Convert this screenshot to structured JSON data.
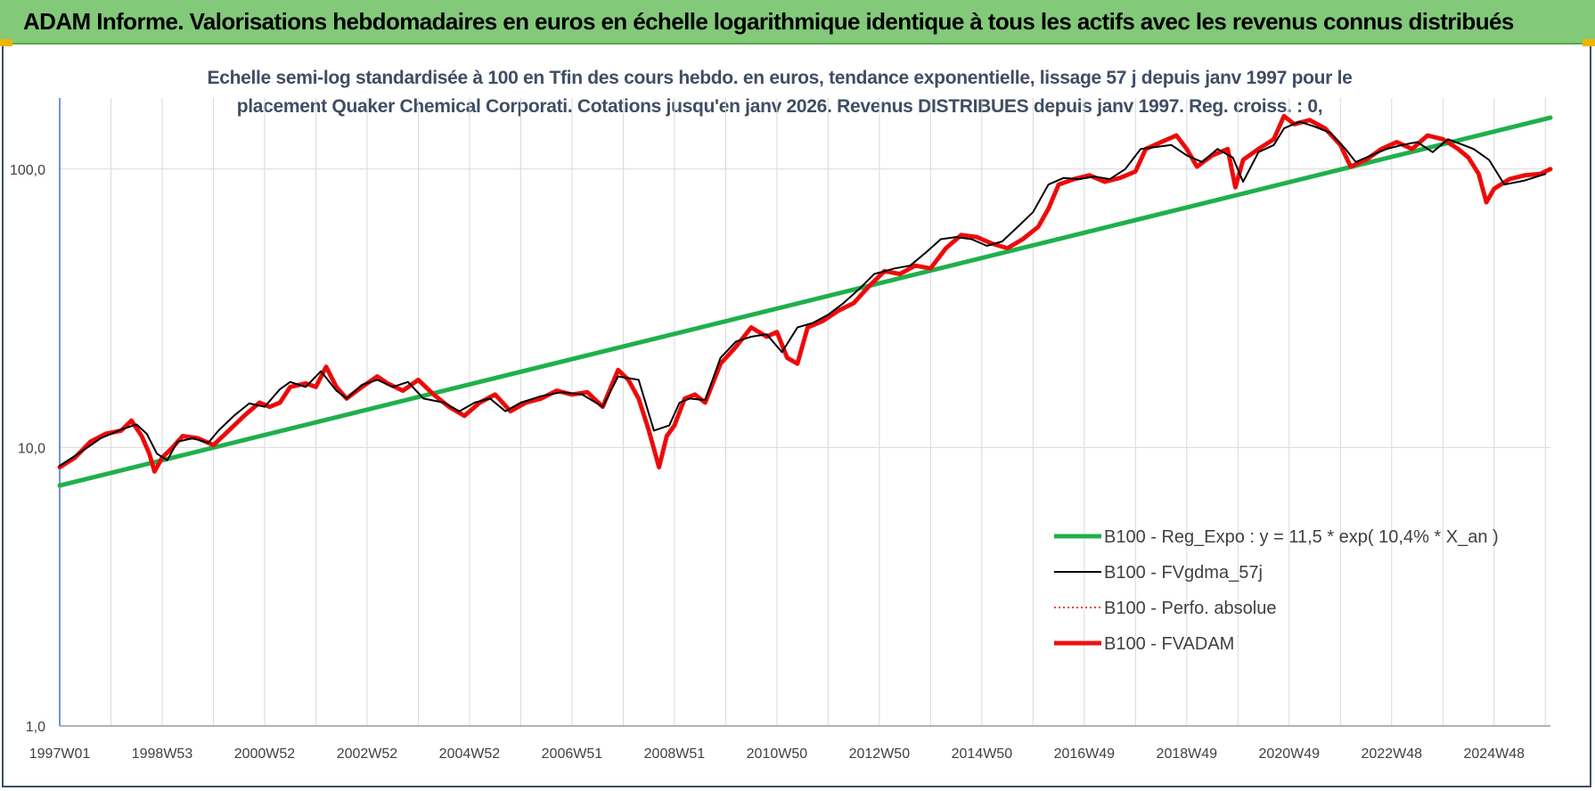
{
  "header": {
    "title": "ADAM Informe. Valorisations hebdomadaires en euros en échelle logarithmique identique à tous les actifs avec les revenus connus distribués"
  },
  "chart_data": {
    "type": "line",
    "title": "",
    "subtitle_lines": [
      "Echelle semi-log standardisée à 100 en Tfin des cours hebdo. en euros, tendance exponentielle, lissage 57 j depuis janv 1997 pour le",
      "placement Quaker Chemical Corporati. Cotations jusqu'en janv 2026. Revenus DISTRIBUES depuis janv 1997. Reg. croiss. : 0,"
    ],
    "y_scale": "log",
    "ylim": [
      1,
      180
    ],
    "y_ticks": [
      {
        "value": 1,
        "label": "1,0"
      },
      {
        "value": 10,
        "label": "10,0"
      },
      {
        "value": 100,
        "label": "100,0"
      }
    ],
    "x_range": [
      1997.0,
      2026.1
    ],
    "x_ticks": [
      {
        "pos": 1997.0,
        "label": "1997W01"
      },
      {
        "pos": 1999.0,
        "label": "1998W53"
      },
      {
        "pos": 2001.0,
        "label": "2000W52"
      },
      {
        "pos": 2003.0,
        "label": "2002W52"
      },
      {
        "pos": 2005.0,
        "label": "2004W52"
      },
      {
        "pos": 2007.0,
        "label": "2006W51"
      },
      {
        "pos": 2009.0,
        "label": "2008W51"
      },
      {
        "pos": 2011.0,
        "label": "2010W50"
      },
      {
        "pos": 2013.0,
        "label": "2012W50"
      },
      {
        "pos": 2015.0,
        "label": "2014W50"
      },
      {
        "pos": 2017.0,
        "label": "2016W49"
      },
      {
        "pos": 2019.0,
        "label": "2018W49"
      },
      {
        "pos": 2021.0,
        "label": "2020W49"
      },
      {
        "pos": 2023.0,
        "label": "2022W48"
      },
      {
        "pos": 2025.0,
        "label": "2024W48"
      }
    ],
    "grid": true,
    "legend_position": "bottom-right",
    "series": [
      {
        "name": "B100 - Reg_Expo : y = 11,5 * exp( 10,4% *  X_an )",
        "color": "#1fb04c",
        "style": "thick",
        "x": [
          1997.0,
          2026.1
        ],
        "y": [
          7.3,
          153
        ]
      },
      {
        "name": "B100 - FVgdma_57j",
        "color": "#000000",
        "style": "thin",
        "x": [
          1997.0,
          1997.4,
          1997.8,
          1998.2,
          1998.5,
          1998.7,
          1998.9,
          1999.1,
          1999.3,
          1999.6,
          1999.9,
          2000.1,
          2000.4,
          2000.7,
          2001.0,
          2001.3,
          2001.5,
          2001.8,
          2002.1,
          2002.4,
          2002.6,
          2002.9,
          2003.2,
          2003.5,
          2003.8,
          2004.1,
          2004.5,
          2004.8,
          2005.1,
          2005.4,
          2005.7,
          2006.0,
          2006.4,
          2006.8,
          2007.2,
          2007.6,
          2007.9,
          2008.3,
          2008.6,
          2008.9,
          2009.1,
          2009.3,
          2009.6,
          2009.9,
          2010.2,
          2010.5,
          2010.8,
          2011.1,
          2011.4,
          2011.7,
          2012.0,
          2012.3,
          2012.6,
          2012.9,
          2013.3,
          2013.6,
          2013.9,
          2014.2,
          2014.5,
          2014.8,
          2015.1,
          2015.4,
          2015.7,
          2016.0,
          2016.3,
          2016.6,
          2016.9,
          2017.2,
          2017.5,
          2017.8,
          2018.1,
          2018.4,
          2018.7,
          2019.0,
          2019.3,
          2019.6,
          2019.9,
          2020.1,
          2020.4,
          2020.7,
          2020.9,
          2021.2,
          2021.5,
          2021.8,
          2022.1,
          2022.3,
          2022.6,
          2022.9,
          2023.2,
          2023.5,
          2023.8,
          2024.1,
          2024.4,
          2024.6,
          2024.9,
          2025.2,
          2025.6,
          2026.0
        ],
        "y": [
          8.6,
          9.6,
          10.8,
          11.6,
          12.1,
          11.2,
          9.5,
          9.0,
          10.5,
          10.8,
          10.4,
          11.5,
          13.0,
          14.4,
          14.0,
          16.2,
          17.2,
          16.5,
          18.8,
          16.0,
          15.0,
          16.8,
          17.5,
          16.5,
          17.2,
          15.0,
          14.5,
          13.5,
          14.5,
          15.0,
          13.5,
          14.5,
          15.3,
          15.8,
          15.5,
          14.0,
          18.0,
          17.5,
          11.5,
          12.0,
          14.5,
          15.0,
          14.8,
          21.0,
          24.0,
          25.0,
          25.5,
          22.0,
          27.0,
          28.0,
          30.0,
          33.0,
          37.0,
          42.0,
          44.0,
          45.0,
          50.0,
          56.0,
          57.0,
          56.0,
          53.0,
          55.0,
          62.0,
          70.0,
          88.0,
          93.0,
          92.0,
          94.0,
          92.0,
          100.0,
          118.0,
          120.0,
          122.0,
          112.0,
          106.0,
          118.0,
          110.0,
          90.0,
          115.0,
          122.0,
          140.0,
          148.0,
          142.0,
          135.0,
          118.0,
          106.0,
          112.0,
          118.0,
          122.0,
          125.0,
          115.0,
          128.0,
          122.0,
          118.0,
          108.0,
          88.0,
          91.0,
          96.0
        ]
      },
      {
        "name": "B100 - Perfo. absolue",
        "color": "#e60000",
        "style": "dotted",
        "x": [
          1997.0,
          1997.3,
          1997.6,
          1997.9,
          1998.2,
          1998.4,
          1998.6,
          1998.75,
          1998.85,
          1999.0,
          1999.2,
          1999.4,
          1999.7,
          2000.0,
          2000.3,
          2000.6,
          2000.9,
          2001.1,
          2001.3,
          2001.5,
          2001.8,
          2002.0,
          2002.2,
          2002.4,
          2002.6,
          2002.9,
          2003.2,
          2003.4,
          2003.7,
          2004.0,
          2004.3,
          2004.6,
          2004.9,
          2005.2,
          2005.5,
          2005.8,
          2006.1,
          2006.4,
          2006.7,
          2007.0,
          2007.3,
          2007.6,
          2007.9,
          2008.1,
          2008.3,
          2008.5,
          2008.7,
          2008.85,
          2009.0,
          2009.2,
          2009.4,
          2009.6,
          2009.9,
          2010.2,
          2010.5,
          2010.8,
          2011.0,
          2011.2,
          2011.4,
          2011.6,
          2011.9,
          2012.2,
          2012.5,
          2012.8,
          2013.1,
          2013.4,
          2013.7,
          2014.0,
          2014.3,
          2014.6,
          2014.9,
          2015.2,
          2015.5,
          2015.8,
          2016.1,
          2016.3,
          2016.5,
          2016.8,
          2017.1,
          2017.4,
          2017.7,
          2018.0,
          2018.2,
          2018.5,
          2018.8,
          2019.0,
          2019.2,
          2019.5,
          2019.8,
          2019.95,
          2020.1,
          2020.4,
          2020.7,
          2020.9,
          2021.1,
          2021.4,
          2021.7,
          2022.0,
          2022.2,
          2022.5,
          2022.8,
          2023.1,
          2023.4,
          2023.7,
          2024.0,
          2024.3,
          2024.5,
          2024.7,
          2024.85,
          2025.0,
          2025.3,
          2025.6,
          2025.9,
          2026.1
        ],
        "y": [
          8.5,
          9.2,
          10.5,
          11.2,
          11.5,
          12.5,
          11.0,
          9.5,
          8.2,
          9.2,
          10.0,
          11.0,
          10.8,
          10.2,
          11.5,
          13.0,
          14.5,
          14.0,
          14.5,
          16.5,
          17.0,
          16.5,
          19.5,
          16.5,
          15.0,
          16.5,
          18.0,
          17.0,
          16.0,
          17.5,
          15.5,
          14.0,
          13.0,
          14.5,
          15.5,
          13.5,
          14.5,
          15.0,
          16.0,
          15.5,
          15.8,
          14.0,
          19.0,
          17.5,
          15.0,
          11.5,
          8.5,
          11.0,
          12.0,
          15.0,
          15.5,
          14.5,
          20.0,
          23.0,
          27.0,
          25.0,
          26.0,
          21.0,
          20.0,
          27.0,
          28.5,
          31.0,
          33.0,
          38.0,
          43.0,
          42.0,
          45.0,
          44.0,
          52.0,
          58.0,
          57.0,
          54.0,
          52.0,
          56.0,
          62.0,
          72.0,
          88.0,
          92.0,
          95.0,
          90.0,
          93.0,
          98.0,
          118.0,
          125.0,
          132.0,
          118.0,
          102.0,
          112.0,
          118.0,
          86.0,
          108.0,
          118.0,
          128.0,
          155.0,
          145.0,
          150.0,
          140.0,
          122.0,
          102.0,
          108.0,
          118.0,
          125.0,
          118.0,
          132.0,
          128.0,
          118.0,
          110.0,
          96.0,
          76.0,
          85.0,
          92.0,
          95.0,
          96.0,
          100.0
        ]
      },
      {
        "name": "B100 - FVADAM",
        "color": "#ee1111",
        "style": "thick",
        "x": [
          1997.0,
          1997.3,
          1997.6,
          1997.9,
          1998.2,
          1998.4,
          1998.6,
          1998.75,
          1998.85,
          1999.0,
          1999.2,
          1999.4,
          1999.7,
          2000.0,
          2000.3,
          2000.6,
          2000.9,
          2001.1,
          2001.3,
          2001.5,
          2001.8,
          2002.0,
          2002.2,
          2002.4,
          2002.6,
          2002.9,
          2003.2,
          2003.4,
          2003.7,
          2004.0,
          2004.3,
          2004.6,
          2004.9,
          2005.2,
          2005.5,
          2005.8,
          2006.1,
          2006.4,
          2006.7,
          2007.0,
          2007.3,
          2007.6,
          2007.9,
          2008.1,
          2008.3,
          2008.5,
          2008.7,
          2008.85,
          2009.0,
          2009.2,
          2009.4,
          2009.6,
          2009.9,
          2010.2,
          2010.5,
          2010.8,
          2011.0,
          2011.2,
          2011.4,
          2011.6,
          2011.9,
          2012.2,
          2012.5,
          2012.8,
          2013.1,
          2013.4,
          2013.7,
          2014.0,
          2014.3,
          2014.6,
          2014.9,
          2015.2,
          2015.5,
          2015.8,
          2016.1,
          2016.3,
          2016.5,
          2016.8,
          2017.1,
          2017.4,
          2017.7,
          2018.0,
          2018.2,
          2018.5,
          2018.8,
          2019.0,
          2019.2,
          2019.5,
          2019.8,
          2019.95,
          2020.1,
          2020.4,
          2020.7,
          2020.9,
          2021.1,
          2021.4,
          2021.7,
          2022.0,
          2022.2,
          2022.5,
          2022.8,
          2023.1,
          2023.4,
          2023.7,
          2024.0,
          2024.3,
          2024.5,
          2024.7,
          2024.85,
          2025.0,
          2025.3,
          2025.6,
          2025.9,
          2026.1
        ],
        "y": [
          8.5,
          9.2,
          10.5,
          11.2,
          11.5,
          12.5,
          11.0,
          9.5,
          8.2,
          9.2,
          10.0,
          11.0,
          10.8,
          10.2,
          11.5,
          13.0,
          14.5,
          14.0,
          14.5,
          16.5,
          17.0,
          16.5,
          19.5,
          16.5,
          15.0,
          16.5,
          18.0,
          17.0,
          16.0,
          17.5,
          15.5,
          14.0,
          13.0,
          14.5,
          15.5,
          13.5,
          14.5,
          15.0,
          16.0,
          15.5,
          15.8,
          14.0,
          19.0,
          17.5,
          15.0,
          11.5,
          8.5,
          11.0,
          12.0,
          15.0,
          15.5,
          14.5,
          20.0,
          23.0,
          27.0,
          25.0,
          26.0,
          21.0,
          20.0,
          27.0,
          28.5,
          31.0,
          33.0,
          38.0,
          43.0,
          42.0,
          45.0,
          44.0,
          52.0,
          58.0,
          57.0,
          54.0,
          52.0,
          56.0,
          62.0,
          72.0,
          88.0,
          92.0,
          95.0,
          90.0,
          93.0,
          98.0,
          118.0,
          125.0,
          132.0,
          118.0,
          102.0,
          112.0,
          118.0,
          86.0,
          108.0,
          118.0,
          128.0,
          155.0,
          145.0,
          150.0,
          140.0,
          122.0,
          102.0,
          108.0,
          118.0,
          125.0,
          118.0,
          132.0,
          128.0,
          118.0,
          110.0,
          96.0,
          76.0,
          85.0,
          92.0,
          95.0,
          96.0,
          100.0
        ]
      }
    ]
  },
  "colors": {
    "banner_bg": "#82c97a",
    "corner_accent": "#f0b400",
    "frame_border": "#3f4c66",
    "grid": "#d9d9d9"
  }
}
